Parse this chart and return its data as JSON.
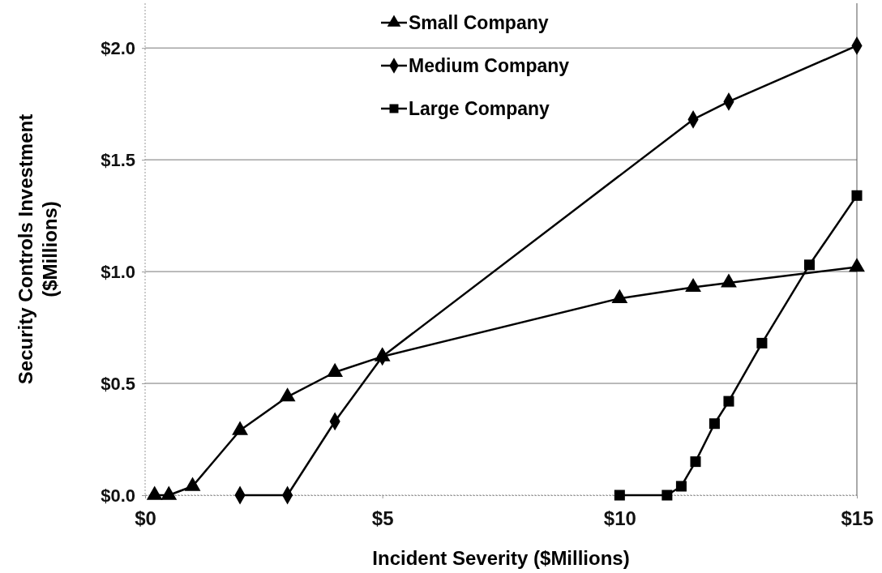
{
  "chart_data": {
    "type": "line",
    "xlabel": "Incident Severity ($Millions)",
    "ylabel": "Security Controls Investment ($Millions)",
    "xlim": [
      0,
      15
    ],
    "ylim": [
      0,
      2.2
    ],
    "xticks": [
      {
        "value": 0,
        "label": "$0"
      },
      {
        "value": 5,
        "label": "$5"
      },
      {
        "value": 10,
        "label": "$10"
      },
      {
        "value": 15,
        "label": "$15"
      }
    ],
    "yticks": [
      {
        "value": 0,
        "label": "$0.0"
      },
      {
        "value": 0.5,
        "label": "$0.5"
      },
      {
        "value": 1,
        "label": "$1.0"
      },
      {
        "value": 1.5,
        "label": "$1.5"
      },
      {
        "value": 2,
        "label": "$2.0"
      }
    ],
    "grid": "y",
    "legend": "top",
    "line_style": "solid",
    "series": [
      {
        "name": "Small Company",
        "color": "#000000",
        "marker": "triangle",
        "x": [
          0.2,
          0.5,
          1,
          2,
          3,
          4,
          5,
          10,
          11.55,
          12.3,
          15
        ],
        "values": [
          0,
          0,
          0.04,
          0.29,
          0.44,
          0.55,
          0.62,
          0.88,
          0.93,
          0.95,
          1.02
        ]
      },
      {
        "name": "Medium Company",
        "color": "#000000",
        "marker": "diamond",
        "x": [
          2,
          3,
          4,
          5,
          11.55,
          12.3,
          15
        ],
        "values": [
          0,
          0,
          0.33,
          0.62,
          1.68,
          1.76,
          2.01
        ]
      },
      {
        "name": "Large Company",
        "color": "#000000",
        "marker": "square",
        "x": [
          10,
          11,
          11.3,
          11.6,
          12,
          12.3,
          13,
          14,
          15
        ],
        "values": [
          0,
          0,
          0.04,
          0.15,
          0.32,
          0.42,
          0.68,
          1.03,
          1.34
        ]
      }
    ]
  }
}
